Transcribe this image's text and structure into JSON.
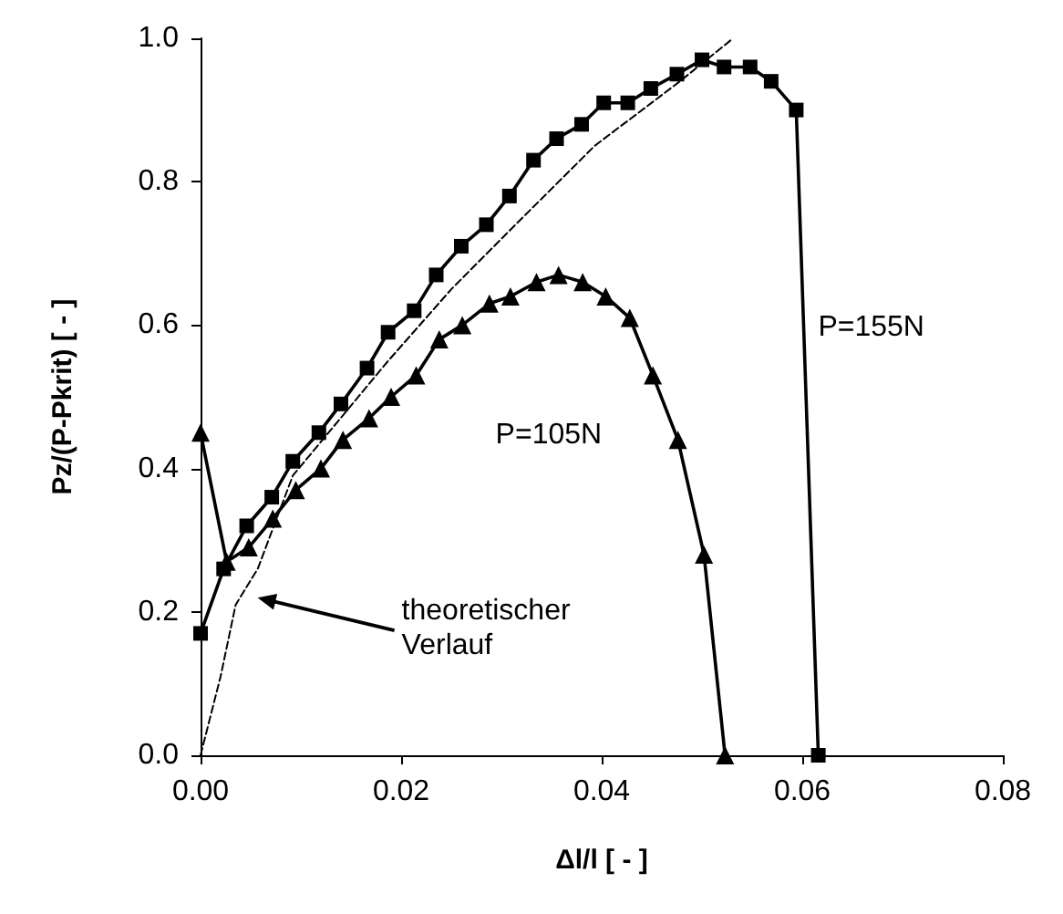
{
  "chart_data": {
    "type": "line",
    "xlabel": "Δl/l [ - ]",
    "ylabel": "Pz/(P-Pkrit) [ - ]",
    "xlim": [
      0,
      0.08
    ],
    "ylim": [
      0,
      1
    ],
    "xticks": [
      {
        "value": 0,
        "label": "0.00"
      },
      {
        "value": 0.02,
        "label": "0.02"
      },
      {
        "value": 0.04,
        "label": "0.04"
      },
      {
        "value": 0.06,
        "label": "0.06"
      },
      {
        "value": 0.08,
        "label": "0.08"
      }
    ],
    "yticks": [
      {
        "value": 0,
        "label": "0.0"
      },
      {
        "value": 0.2,
        "label": "0.2"
      },
      {
        "value": 0.4,
        "label": "0.4"
      },
      {
        "value": 0.6,
        "label": "0.6"
      },
      {
        "value": 0.8,
        "label": "0.8"
      },
      {
        "value": 1,
        "label": "1.0"
      }
    ],
    "grid": false,
    "legend": false,
    "series": [
      {
        "name": "P=155N",
        "color": "#000000",
        "marker": "square",
        "line_style": "solid",
        "x": [
          0,
          0.0023,
          0.0046,
          0.0071,
          0.0092,
          0.0118,
          0.014,
          0.0166,
          0.0187,
          0.0213,
          0.0235,
          0.026,
          0.0285,
          0.0308,
          0.0332,
          0.0355,
          0.038,
          0.0402,
          0.0426,
          0.0449,
          0.0475,
          0.05,
          0.0522,
          0.0548,
          0.0569,
          0.0594,
          0.0616
        ],
        "values": [
          0.17,
          0.26,
          0.32,
          0.36,
          0.41,
          0.45,
          0.49,
          0.54,
          0.59,
          0.62,
          0.67,
          0.71,
          0.74,
          0.78,
          0.83,
          0.86,
          0.88,
          0.91,
          0.91,
          0.93,
          0.95,
          0.97,
          0.96,
          0.96,
          0.94,
          0.9,
          0
        ]
      },
      {
        "name": "P=105N",
        "color": "#000000",
        "marker": "triangle",
        "line_style": "solid",
        "x": [
          0,
          0.0026,
          0.0048,
          0.0072,
          0.0095,
          0.012,
          0.0142,
          0.0168,
          0.019,
          0.0215,
          0.0238,
          0.0261,
          0.0288,
          0.0309,
          0.0335,
          0.0357,
          0.0381,
          0.0404,
          0.0428,
          0.0451,
          0.0476,
          0.0502,
          0.0523
        ],
        "values": [
          0.45,
          0.27,
          0.29,
          0.33,
          0.37,
          0.4,
          0.44,
          0.47,
          0.5,
          0.53,
          0.58,
          0.6,
          0.63,
          0.64,
          0.66,
          0.67,
          0.66,
          0.64,
          0.61,
          0.53,
          0.44,
          0.28,
          0
        ]
      },
      {
        "color": "#000000",
        "marker": "none",
        "line_style": "dashed",
        "x": [
          0,
          0.002,
          0.0035,
          0.0057,
          0.0092,
          0.0187,
          0.025,
          0.0314,
          0.0393,
          0.0478,
          0.0531
        ],
        "values": [
          0,
          0.11,
          0.21,
          0.26,
          0.39,
          0.55,
          0.65,
          0.74,
          0.85,
          0.94,
          1.0
        ]
      }
    ],
    "annotations": [
      "theoretischer\nVerlauf"
    ]
  }
}
